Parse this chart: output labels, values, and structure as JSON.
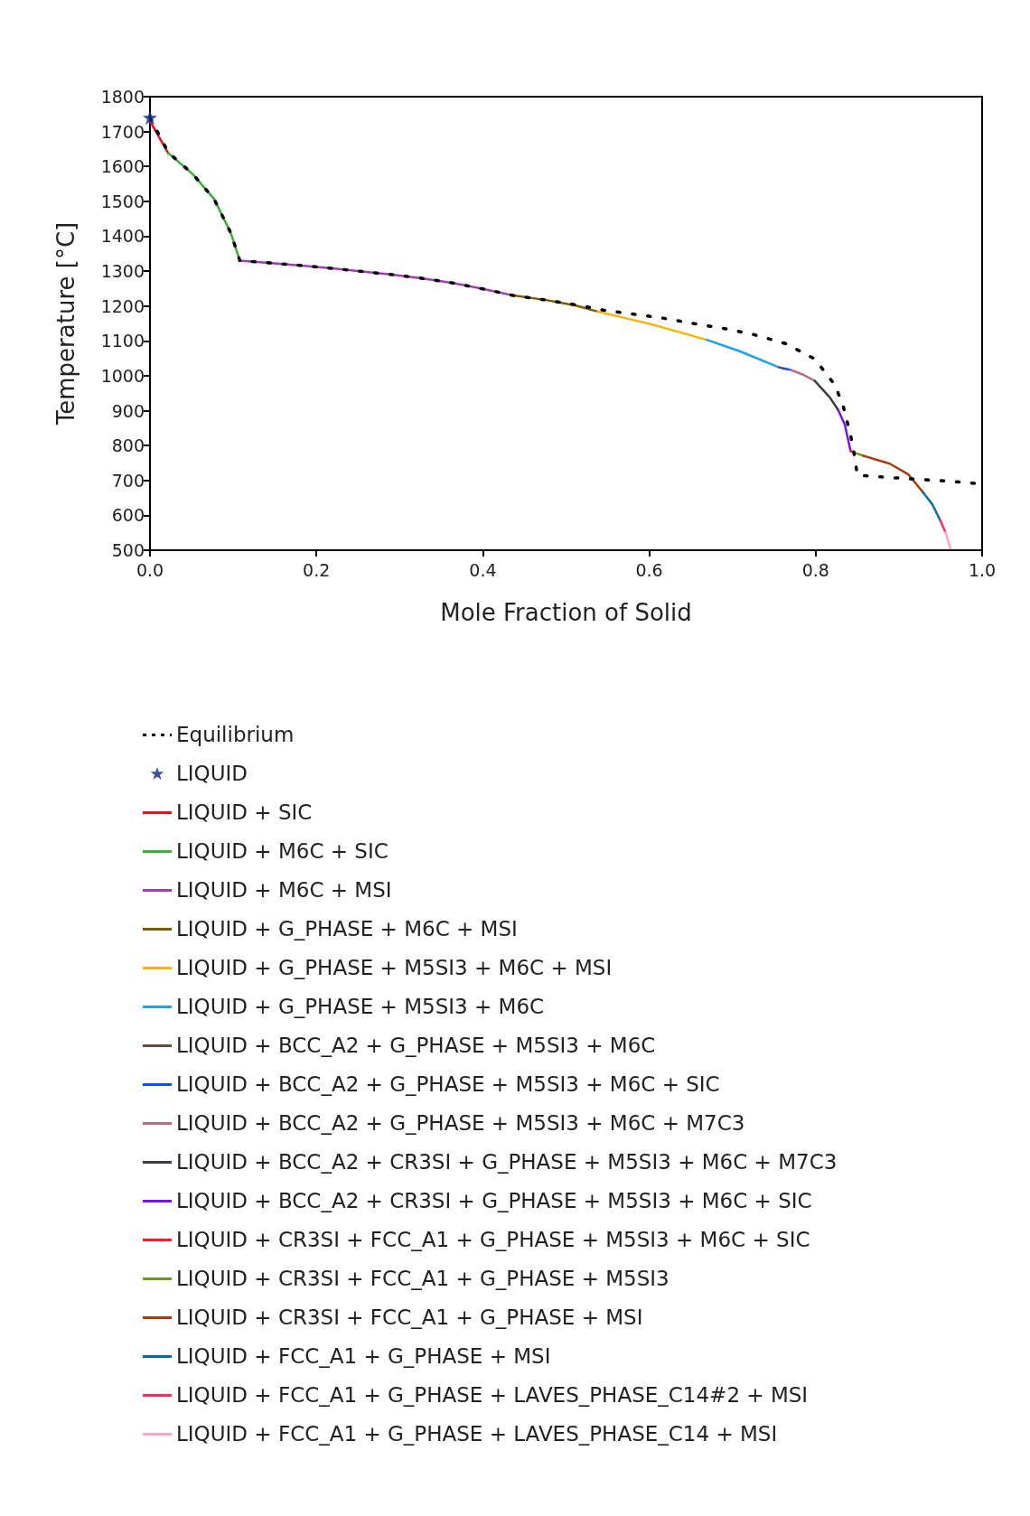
{
  "chart_data": {
    "type": "line",
    "xlabel": "Mole Fraction of Solid",
    "ylabel": "Temperature [°C]",
    "xlim": [
      0,
      1
    ],
    "ylim": [
      500,
      1800
    ],
    "xticks": [
      {
        "value": 0,
        "label": "0.0"
      },
      0.2,
      0.4,
      0.6,
      0.8,
      {
        "value": 1,
        "label": "1.0"
      }
    ],
    "yticks": [
      500,
      600,
      700,
      800,
      900,
      1000,
      1100,
      1200,
      1300,
      1400,
      1500,
      1600,
      1700,
      1800
    ],
    "grid": false,
    "legend": "bottom",
    "series": [
      {
        "name": "Equilibrium",
        "color": "#000000",
        "line_style": "dotted",
        "marker": "none",
        "x": [
          0,
          0.022,
          0.051,
          0.077,
          0.097,
          0.108,
          0.146,
          0.182,
          0.219,
          0.255,
          0.291,
          0.328,
          0.364,
          0.4,
          0.437,
          0.476,
          0.513,
          0.545,
          0.58,
          0.617,
          0.652,
          0.689,
          0.724,
          0.763,
          0.799,
          0.822,
          0.832,
          0.842,
          0.847,
          0.85,
          0.886,
          0.923,
          0.959,
          1
        ],
        "values": [
          1740,
          1640,
          1579,
          1507,
          1410,
          1330,
          1323,
          1316,
          1308,
          1299,
          1290,
          1279,
          1266,
          1249,
          1230,
          1217,
          1203,
          1188,
          1177,
          1165,
          1150,
          1136,
          1119,
          1093,
          1048,
          977,
          923,
          830,
          765,
          715,
          709,
          703,
          698,
          690
        ]
      },
      {
        "name": "LIQUID",
        "color": "#0b2a8c",
        "type": "scatter",
        "marker": "star",
        "x": [
          0
        ],
        "values": [
          1740
        ]
      },
      {
        "name": "LIQUID + SIC",
        "color": "#e8121e",
        "x": [
          0,
          0.022
        ],
        "values": [
          1730,
          1638
        ]
      },
      {
        "name": "LIQUID + M6C + SIC",
        "color": "#3cb034",
        "x": [
          0.022,
          0.051,
          0.077,
          0.097,
          0.108
        ],
        "values": [
          1638,
          1579,
          1507,
          1410,
          1330
        ]
      },
      {
        "name": "LIQUID + M6C + MSI",
        "color": "#a03cb4",
        "x": [
          0.108,
          0.146,
          0.182,
          0.219,
          0.255,
          0.291,
          0.328,
          0.364,
          0.4,
          0.437
        ],
        "values": [
          1330,
          1323,
          1316,
          1308,
          1299,
          1290,
          1279,
          1266,
          1249,
          1230
        ]
      },
      {
        "name": "LIQUID + G_PHASE + M6C + MSI",
        "color": "#7a5c00",
        "x": [
          0.437,
          0.476,
          0.512,
          0.538
        ],
        "values": [
          1230,
          1217,
          1201,
          1184
        ]
      },
      {
        "name": "LIQUID + G_PHASE + M5SI3 + M6C + MSI",
        "color": "#ffb000",
        "x": [
          0.538,
          0.6,
          0.669
        ],
        "values": [
          1184,
          1149,
          1103
        ]
      },
      {
        "name": "LIQUID + G_PHASE + M5SI3 + M6C",
        "color": "#1aa3e8",
        "x": [
          0.669,
          0.708,
          0.756
        ],
        "values": [
          1103,
          1071,
          1024
        ]
      },
      {
        "name": "LIQUID + BCC_A2 + G_PHASE + M5SI3 + M6C",
        "color": "#6b4a3a",
        "x": [
          0.756,
          0.761
        ],
        "values": [
          1024,
          1021
        ]
      },
      {
        "name": "LIQUID + BCC_A2 + G_PHASE + M5SI3 + M6C + SIC",
        "color": "#0a4ff0",
        "x": [
          0.761,
          0.77
        ],
        "values": [
          1021,
          1017
        ]
      },
      {
        "name": "LIQUID + BCC_A2 + G_PHASE + M5SI3 + M6C + M7C3",
        "color": "#b86a88",
        "x": [
          0.77,
          0.785,
          0.799
        ],
        "values": [
          1017,
          1003,
          985
        ]
      },
      {
        "name": "LIQUID + BCC_A2 + CR3SI + G_PHASE + M5SI3 + M6C + M7C3",
        "color": "#3c3c44",
        "x": [
          0.799,
          0.817,
          0.827
        ],
        "values": [
          985,
          938,
          902
        ]
      },
      {
        "name": "LIQUID + BCC_A2 + CR3SI + G_PHASE + M5SI3 + M6C + SIC",
        "color": "#7a14e6",
        "x": [
          0.827,
          0.835,
          0.842
        ],
        "values": [
          902,
          860,
          784
        ]
      },
      {
        "name": "LIQUID + CR3SI + FCC_A1 + G_PHASE + M5SI3 + M6C + SIC",
        "color": "#ff1a2a",
        "x": [
          0.842,
          0.846
        ],
        "values": [
          784,
          780
        ]
      },
      {
        "name": "LIQUID + CR3SI + FCC_A1 + G_PHASE + M5SI3",
        "color": "#6a9a1a",
        "x": [
          0.846,
          0.857
        ],
        "values": [
          780,
          771
        ]
      },
      {
        "name": "LIQUID + CR3SI + FCC_A1 + G_PHASE + MSI",
        "color": "#a83c10",
        "x": [
          0.857,
          0.889,
          0.911,
          0.929
        ],
        "values": [
          771,
          748,
          718,
          666
        ]
      },
      {
        "name": "LIQUID + FCC_A1 + G_PHASE + MSI",
        "color": "#0a6a9a",
        "x": [
          0.929,
          0.94,
          0.95
        ],
        "values": [
          666,
          632,
          584
        ]
      },
      {
        "name": "LIQUID + FCC_A1 + G_PHASE + LAVES_PHASE_C14#2 + MSI",
        "color": "#ff2a60",
        "x": [
          0.95,
          0.956
        ],
        "values": [
          584,
          551
        ]
      },
      {
        "name": "LIQUID + FCC_A1 + G_PHASE + LAVES_PHASE_C14 + MSI",
        "color": "#ffa0c8",
        "x": [
          0.956,
          0.962
        ],
        "values": [
          551,
          505
        ]
      }
    ]
  }
}
